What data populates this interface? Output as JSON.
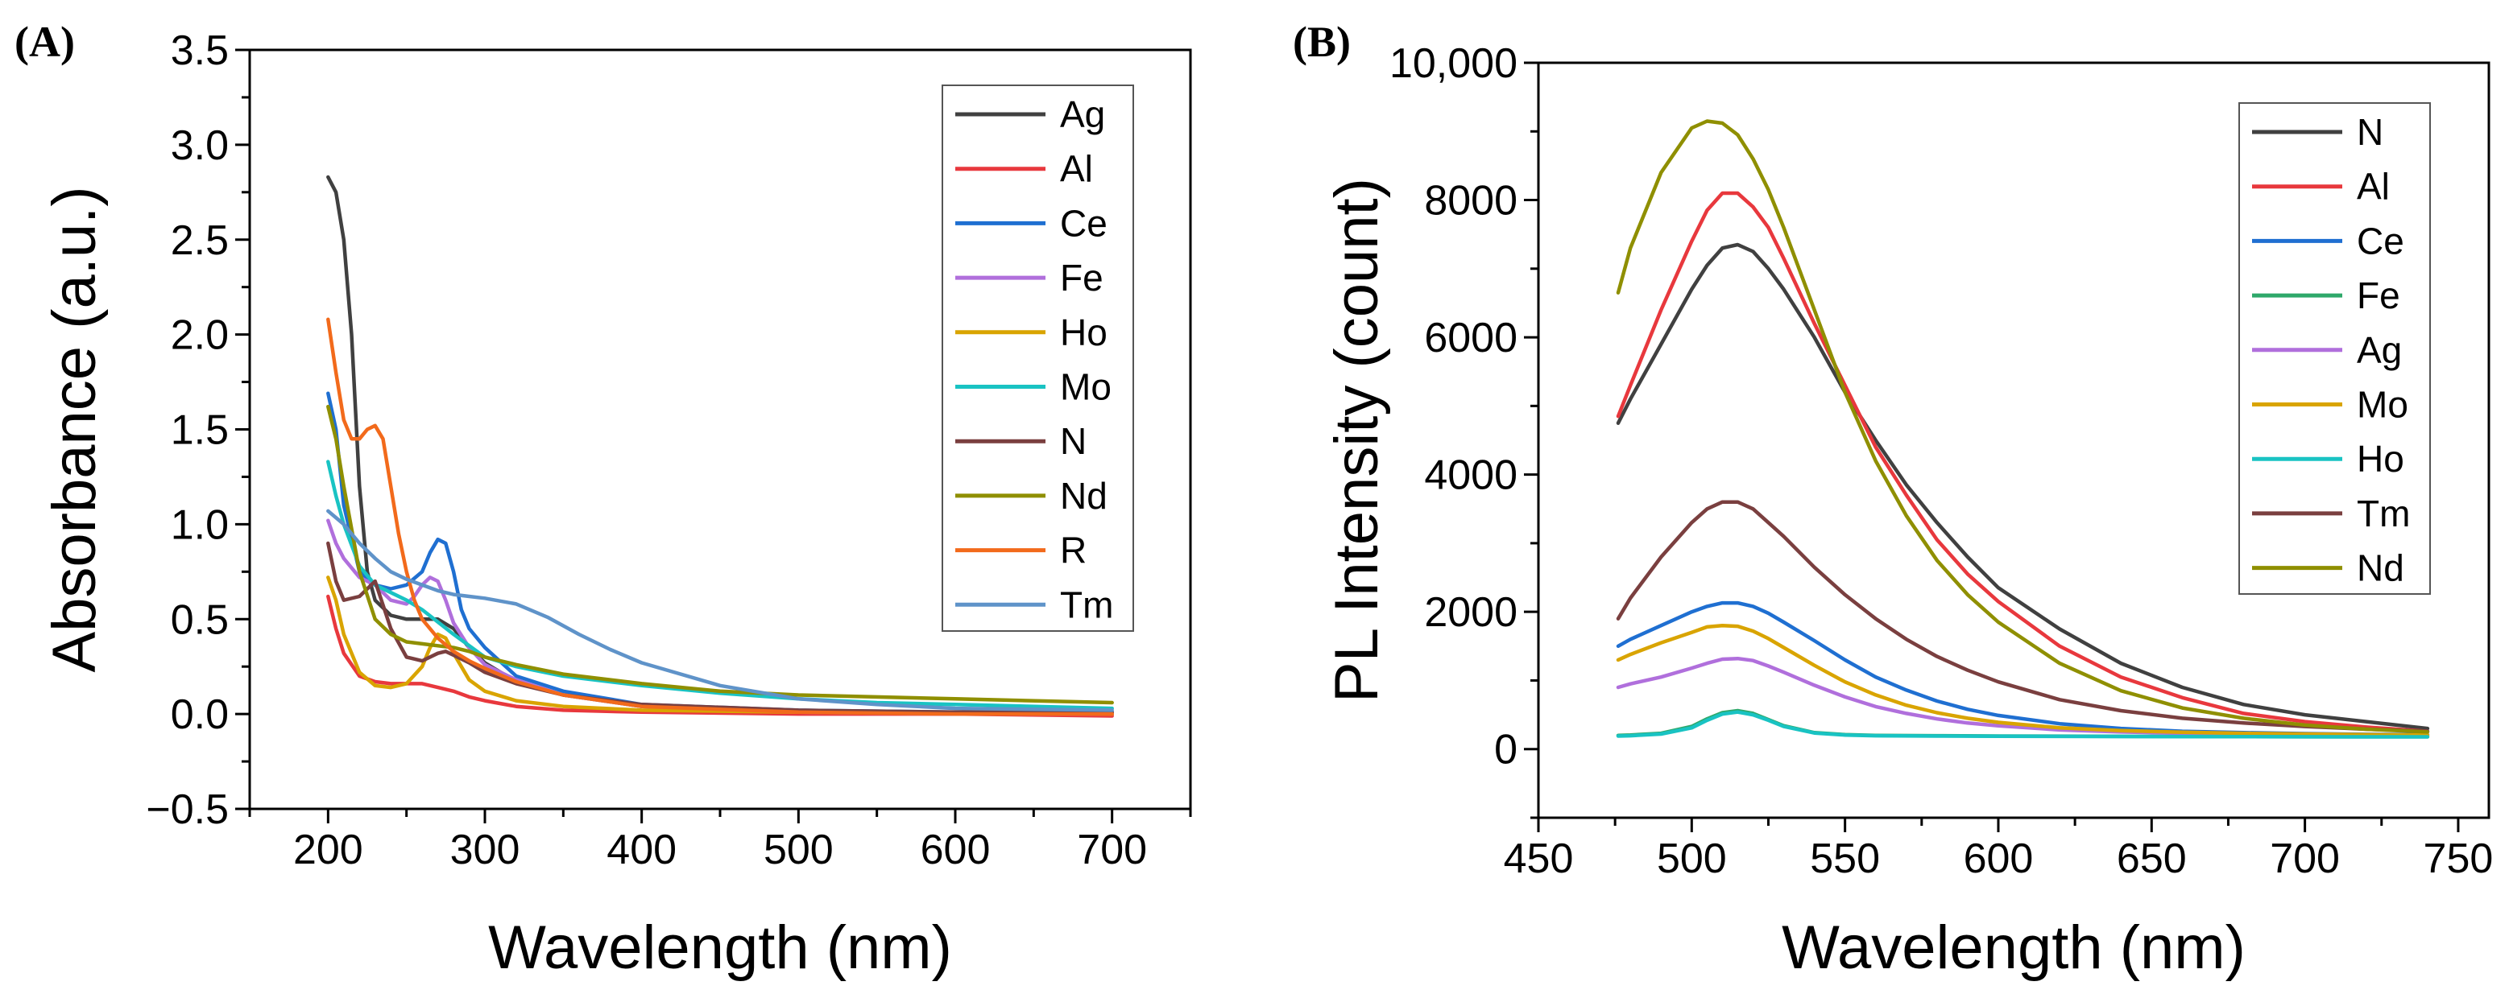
{
  "chart_data": [
    {
      "panel": "(A)",
      "type": "line",
      "title": "",
      "xlabel": "Wavelength (nm)",
      "ylabel": "Absorbance (a.u.)",
      "xlim": [
        150,
        750
      ],
      "ylim": [
        -0.5,
        3.5
      ],
      "xticks": [
        200,
        300,
        400,
        500,
        600,
        700
      ],
      "yticks": [
        -0.5,
        0.0,
        0.5,
        1.0,
        1.5,
        2.0,
        2.5,
        3.0,
        3.5
      ],
      "ytick_labels": [
        "−0.5",
        "0.0",
        "0.5",
        "1.0",
        "1.5",
        "2.0",
        "2.5",
        "3.0",
        "3.5"
      ],
      "legend_position": "top-right",
      "series": [
        {
          "name": "Ag",
          "color": "#404040",
          "x": [
            200,
            205,
            210,
            215,
            220,
            225,
            230,
            240,
            250,
            260,
            270,
            280,
            290,
            300,
            320,
            350,
            400,
            500,
            600,
            700
          ],
          "values": [
            2.83,
            2.75,
            2.5,
            2.0,
            1.2,
            0.75,
            0.6,
            0.52,
            0.5,
            0.5,
            0.5,
            0.45,
            0.35,
            0.27,
            0.17,
            0.1,
            0.04,
            0.01,
            0.0,
            0.0
          ]
        },
        {
          "name": "Al",
          "color": "#e8383d",
          "x": [
            200,
            205,
            210,
            220,
            230,
            240,
            250,
            260,
            270,
            280,
            290,
            300,
            320,
            350,
            400,
            500,
            600,
            700
          ],
          "values": [
            0.62,
            0.45,
            0.32,
            0.2,
            0.17,
            0.16,
            0.16,
            0.16,
            0.14,
            0.12,
            0.09,
            0.07,
            0.04,
            0.02,
            0.01,
            0.0,
            0.0,
            -0.01
          ]
        },
        {
          "name": "Ce",
          "color": "#1f6fd1",
          "x": [
            200,
            205,
            210,
            220,
            230,
            240,
            250,
            260,
            265,
            270,
            275,
            280,
            285,
            290,
            300,
            320,
            350,
            400,
            500,
            600,
            700
          ],
          "values": [
            1.69,
            1.5,
            1.1,
            0.75,
            0.68,
            0.66,
            0.68,
            0.75,
            0.85,
            0.92,
            0.9,
            0.75,
            0.55,
            0.45,
            0.35,
            0.2,
            0.12,
            0.05,
            0.02,
            0.01,
            0.01
          ]
        },
        {
          "name": "Fe",
          "color": "#b06fdc",
          "x": [
            200,
            205,
            210,
            220,
            230,
            240,
            250,
            255,
            260,
            265,
            270,
            275,
            280,
            290,
            300,
            320,
            350,
            400,
            500,
            600,
            700
          ],
          "values": [
            1.02,
            0.9,
            0.82,
            0.72,
            0.68,
            0.6,
            0.58,
            0.62,
            0.68,
            0.72,
            0.7,
            0.6,
            0.48,
            0.35,
            0.26,
            0.18,
            0.1,
            0.04,
            0.01,
            0.0,
            0.0
          ]
        },
        {
          "name": "Ho",
          "color": "#d9a400",
          "x": [
            200,
            205,
            210,
            220,
            230,
            240,
            250,
            260,
            265,
            270,
            275,
            280,
            285,
            290,
            300,
            320,
            350,
            400,
            500,
            600,
            700
          ],
          "values": [
            0.72,
            0.6,
            0.42,
            0.22,
            0.15,
            0.14,
            0.16,
            0.25,
            0.35,
            0.42,
            0.4,
            0.32,
            0.25,
            0.18,
            0.12,
            0.07,
            0.04,
            0.02,
            0.01,
            0.01,
            0.0
          ]
        },
        {
          "name": "Mo",
          "color": "#19c3c3",
          "x": [
            200,
            205,
            210,
            220,
            230,
            240,
            250,
            260,
            280,
            300,
            320,
            350,
            400,
            450,
            500,
            550,
            600,
            700
          ],
          "values": [
            1.33,
            1.15,
            1.0,
            0.78,
            0.68,
            0.64,
            0.6,
            0.55,
            0.42,
            0.3,
            0.25,
            0.2,
            0.15,
            0.11,
            0.08,
            0.06,
            0.05,
            0.03
          ]
        },
        {
          "name": "N",
          "color": "#7a3f3f",
          "x": [
            200,
            205,
            210,
            220,
            230,
            240,
            250,
            260,
            270,
            275,
            280,
            290,
            300,
            320,
            350,
            400,
            500,
            600,
            700
          ],
          "values": [
            0.9,
            0.7,
            0.6,
            0.62,
            0.7,
            0.45,
            0.3,
            0.28,
            0.32,
            0.33,
            0.31,
            0.27,
            0.22,
            0.16,
            0.1,
            0.05,
            0.02,
            0.01,
            0.01
          ]
        },
        {
          "name": "Nd",
          "color": "#8f8f00",
          "x": [
            200,
            205,
            210,
            220,
            230,
            240,
            250,
            260,
            270,
            280,
            290,
            300,
            320,
            350,
            400,
            450,
            500,
            600,
            700
          ],
          "values": [
            1.62,
            1.45,
            1.2,
            0.75,
            0.5,
            0.42,
            0.38,
            0.37,
            0.36,
            0.35,
            0.33,
            0.3,
            0.26,
            0.21,
            0.16,
            0.12,
            0.1,
            0.08,
            0.06
          ]
        },
        {
          "name": "R",
          "color": "#f26a1b",
          "x": [
            200,
            205,
            210,
            215,
            220,
            225,
            230,
            235,
            240,
            245,
            250,
            255,
            260,
            270,
            280,
            290,
            300,
            320,
            350,
            400,
            500,
            600,
            700
          ],
          "values": [
            2.08,
            1.8,
            1.55,
            1.45,
            1.45,
            1.5,
            1.52,
            1.45,
            1.2,
            0.95,
            0.75,
            0.6,
            0.5,
            0.4,
            0.33,
            0.28,
            0.24,
            0.17,
            0.1,
            0.04,
            0.01,
            0.0,
            0.0
          ]
        },
        {
          "name": "Tm",
          "color": "#5f93c9",
          "x": [
            200,
            210,
            220,
            230,
            240,
            250,
            260,
            270,
            280,
            290,
            300,
            320,
            340,
            360,
            380,
            400,
            450,
            500,
            550,
            600,
            700
          ],
          "values": [
            1.07,
            1.0,
            0.9,
            0.82,
            0.75,
            0.71,
            0.68,
            0.65,
            0.63,
            0.62,
            0.61,
            0.58,
            0.51,
            0.42,
            0.34,
            0.27,
            0.15,
            0.08,
            0.05,
            0.03,
            0.02
          ]
        }
      ]
    },
    {
      "panel": "(B)",
      "type": "line",
      "title": "",
      "xlabel": "Wavelength (nm)",
      "ylabel": "PL Intensity (count)",
      "xlim": [
        450,
        760
      ],
      "ylim": [
        -1000,
        10000
      ],
      "xticks": [
        450,
        500,
        550,
        600,
        650,
        700,
        750
      ],
      "yticks": [
        0,
        2000,
        4000,
        6000,
        8000,
        10000
      ],
      "ytick_labels": [
        "0",
        "2000",
        "4000",
        "6000",
        "8000",
        "10,000"
      ],
      "legend_position": "top-right",
      "series": [
        {
          "name": "N",
          "color": "#404040",
          "x": [
            476,
            480,
            490,
            500,
            505,
            510,
            515,
            520,
            525,
            530,
            540,
            550,
            560,
            570,
            580,
            590,
            600,
            620,
            640,
            660,
            680,
            700,
            720,
            740
          ],
          "values": [
            4750,
            5100,
            5900,
            6700,
            7050,
            7300,
            7350,
            7250,
            7000,
            6700,
            6000,
            5200,
            4500,
            3850,
            3300,
            2800,
            2350,
            1750,
            1250,
            900,
            650,
            500,
            400,
            300
          ]
        },
        {
          "name": "Al",
          "color": "#e8383d",
          "x": [
            476,
            480,
            490,
            500,
            505,
            510,
            515,
            520,
            525,
            530,
            540,
            550,
            560,
            570,
            580,
            590,
            600,
            620,
            640,
            660,
            680,
            700,
            720,
            740
          ],
          "values": [
            4850,
            5300,
            6400,
            7400,
            7850,
            8100,
            8100,
            7900,
            7600,
            7150,
            6200,
            5300,
            4400,
            3700,
            3050,
            2550,
            2150,
            1500,
            1050,
            750,
            520,
            400,
            320,
            260
          ]
        },
        {
          "name": "Ce",
          "color": "#1f6fd1",
          "x": [
            476,
            480,
            490,
            500,
            505,
            510,
            515,
            520,
            525,
            530,
            540,
            550,
            560,
            570,
            580,
            590,
            600,
            620,
            640,
            660,
            680,
            700,
            720,
            740
          ],
          "values": [
            1500,
            1600,
            1800,
            2000,
            2080,
            2130,
            2130,
            2080,
            1980,
            1850,
            1580,
            1300,
            1050,
            860,
            700,
            580,
            490,
            370,
            300,
            260,
            240,
            225,
            215,
            210
          ]
        },
        {
          "name": "Fe",
          "color": "#2ea86a",
          "x": [
            476,
            480,
            490,
            500,
            505,
            510,
            515,
            520,
            525,
            530,
            540,
            550,
            560,
            580,
            600,
            650,
            700,
            740
          ],
          "values": [
            200,
            205,
            230,
            330,
            440,
            530,
            560,
            520,
            430,
            340,
            240,
            210,
            200,
            195,
            190,
            185,
            180,
            180
          ]
        },
        {
          "name": "Ag",
          "color": "#b06fdc",
          "x": [
            476,
            480,
            490,
            500,
            505,
            510,
            515,
            520,
            525,
            530,
            540,
            550,
            560,
            570,
            580,
            590,
            600,
            620,
            640,
            660,
            680,
            700,
            720,
            740
          ],
          "values": [
            900,
            950,
            1050,
            1180,
            1250,
            1310,
            1320,
            1290,
            1210,
            1120,
            930,
            760,
            620,
            520,
            440,
            380,
            340,
            280,
            250,
            230,
            220,
            210,
            205,
            200
          ]
        },
        {
          "name": "Mo",
          "color": "#d9a400",
          "x": [
            476,
            480,
            490,
            500,
            505,
            510,
            515,
            520,
            525,
            530,
            540,
            550,
            560,
            570,
            580,
            590,
            600,
            620,
            640,
            660,
            680,
            700,
            720,
            740
          ],
          "values": [
            1300,
            1380,
            1550,
            1700,
            1780,
            1800,
            1790,
            1720,
            1610,
            1480,
            1220,
            980,
            790,
            640,
            530,
            450,
            390,
            310,
            270,
            245,
            230,
            220,
            210,
            205
          ]
        },
        {
          "name": "Ho",
          "color": "#19c3c3",
          "x": [
            476,
            480,
            490,
            500,
            505,
            510,
            515,
            520,
            525,
            530,
            540,
            550,
            560,
            580,
            600,
            650,
            700,
            740
          ],
          "values": [
            190,
            195,
            220,
            310,
            420,
            510,
            540,
            500,
            420,
            330,
            235,
            205,
            195,
            190,
            188,
            183,
            180,
            178
          ]
        },
        {
          "name": "Tm",
          "color": "#7a3f3f",
          "x": [
            476,
            480,
            490,
            500,
            505,
            510,
            515,
            520,
            525,
            530,
            540,
            550,
            560,
            570,
            580,
            590,
            600,
            620,
            640,
            660,
            680,
            700,
            720,
            740
          ],
          "values": [
            1900,
            2200,
            2800,
            3300,
            3500,
            3600,
            3600,
            3500,
            3300,
            3100,
            2650,
            2250,
            1900,
            1600,
            1350,
            1150,
            980,
            720,
            560,
            450,
            380,
            330,
            290,
            260
          ]
        },
        {
          "name": "Nd",
          "color": "#8f8f00",
          "x": [
            476,
            480,
            490,
            500,
            505,
            510,
            515,
            520,
            525,
            530,
            540,
            550,
            560,
            570,
            580,
            590,
            600,
            620,
            640,
            660,
            680,
            700,
            720,
            740
          ],
          "values": [
            6650,
            7300,
            8400,
            9050,
            9150,
            9120,
            8950,
            8600,
            8150,
            7600,
            6400,
            5200,
            4200,
            3400,
            2750,
            2250,
            1850,
            1250,
            850,
            600,
            450,
            350,
            290,
            250
          ]
        }
      ]
    }
  ]
}
